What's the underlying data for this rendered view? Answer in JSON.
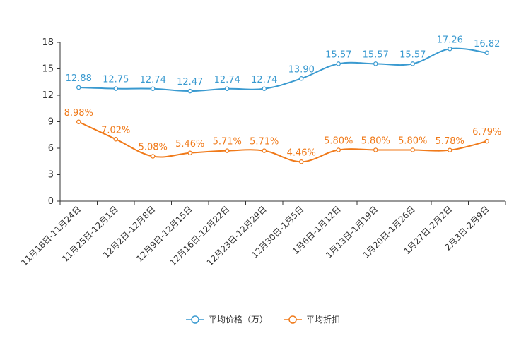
{
  "chart_data": {
    "type": "line",
    "title": "",
    "xlabel": "",
    "ylabel": "",
    "ylim": [
      0,
      18
    ],
    "yticks": [
      "0",
      "3",
      "6",
      "9",
      "12",
      "15",
      "18"
    ],
    "categories": [
      "11月18日-11月24日",
      "11月25日-12月1日",
      "12月2日-12月8日",
      "12月9日-12月15日",
      "12月16日-12月22日",
      "12月23日-12月29日",
      "12月30日-1月5日",
      "1月6日-1月12日",
      "1月13日-1月19日",
      "1月20日-1月26日",
      "1月27日-2月2日",
      "2月3日-2月9日"
    ],
    "series": [
      {
        "name": "平均价格（万）",
        "color": "#3a9ad0",
        "values": [
          12.88,
          12.75,
          12.74,
          12.47,
          12.74,
          12.74,
          13.9,
          15.57,
          15.57,
          15.57,
          17.26,
          16.82
        ],
        "labels": [
          "12.88",
          "12.75",
          "12.74",
          "12.47",
          "12.74",
          "12.74",
          "13.90",
          "15.57",
          "15.57",
          "15.57",
          "17.26",
          "16.82"
        ]
      },
      {
        "name": "平均折扣",
        "color": "#f07a1a",
        "values": [
          8.98,
          7.02,
          5.08,
          5.46,
          5.71,
          5.71,
          4.46,
          5.8,
          5.8,
          5.8,
          5.78,
          6.79
        ],
        "labels": [
          "8.98%",
          "7.02%",
          "5.08%",
          "5.46%",
          "5.71%",
          "5.71%",
          "4.46%",
          "5.80%",
          "5.80%",
          "5.80%",
          "5.78%",
          "6.79%"
        ]
      }
    ],
    "legend_position": "bottom"
  }
}
